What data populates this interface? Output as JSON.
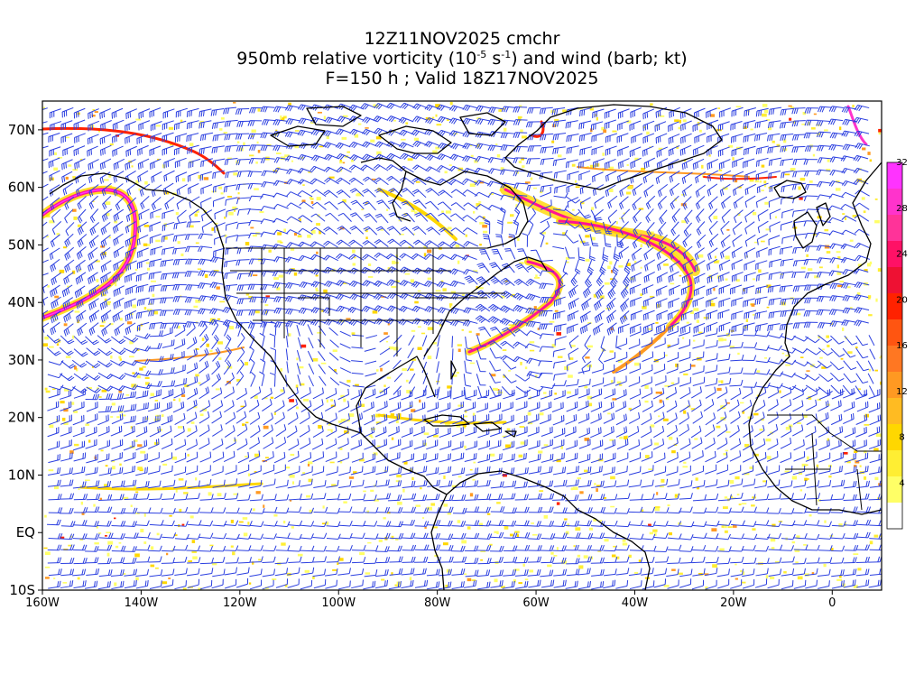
{
  "title": {
    "line1": "12Z11NOV2025 cmchr",
    "line2_pre": "950mb relative vorticity (10",
    "line2_exp1": "-5",
    "line2_mid": " s",
    "line2_exp2": "-1",
    "line2_post": ") and wind (barb; kt)",
    "line3": "F=150 h ; Valid 18Z17NOV2025"
  },
  "map": {
    "lon_range": [
      -160,
      10
    ],
    "lat_range": [
      -10,
      75
    ],
    "lat_ticks": [
      {
        "lat": 70,
        "label": "70N"
      },
      {
        "lat": 60,
        "label": "60N"
      },
      {
        "lat": 50,
        "label": "50N"
      },
      {
        "lat": 40,
        "label": "40N"
      },
      {
        "lat": 30,
        "label": "30N"
      },
      {
        "lat": 20,
        "label": "20N"
      },
      {
        "lat": 10,
        "label": "10N"
      },
      {
        "lat": 0,
        "label": "EQ"
      },
      {
        "lat": -10,
        "label": "10S"
      }
    ],
    "lon_ticks": [
      {
        "lon": -160,
        "label": "160W"
      },
      {
        "lon": -140,
        "label": "140W"
      },
      {
        "lon": -120,
        "label": "120W"
      },
      {
        "lon": -100,
        "label": "100W"
      },
      {
        "lon": -80,
        "label": "80W"
      },
      {
        "lon": -60,
        "label": "60W"
      },
      {
        "lon": -40,
        "label": "40W"
      },
      {
        "lon": -20,
        "label": "20W"
      },
      {
        "lon": 0,
        "label": "0"
      }
    ],
    "colors": {
      "barb": "#2b3fe0",
      "coast": "#000000"
    }
  },
  "colorbar": {
    "levels": [
      4,
      8,
      12,
      16,
      20,
      24,
      28,
      32
    ],
    "colors": [
      "#ffffff",
      "#ffff66",
      "#ffee33",
      "#ffd700",
      "#ffbb22",
      "#ff9922",
      "#ff7722",
      "#ff5511",
      "#ff2200",
      "#ee1133",
      "#ff1166",
      "#ff3399",
      "#ff33cc",
      "#ff33ff"
    ]
  }
}
